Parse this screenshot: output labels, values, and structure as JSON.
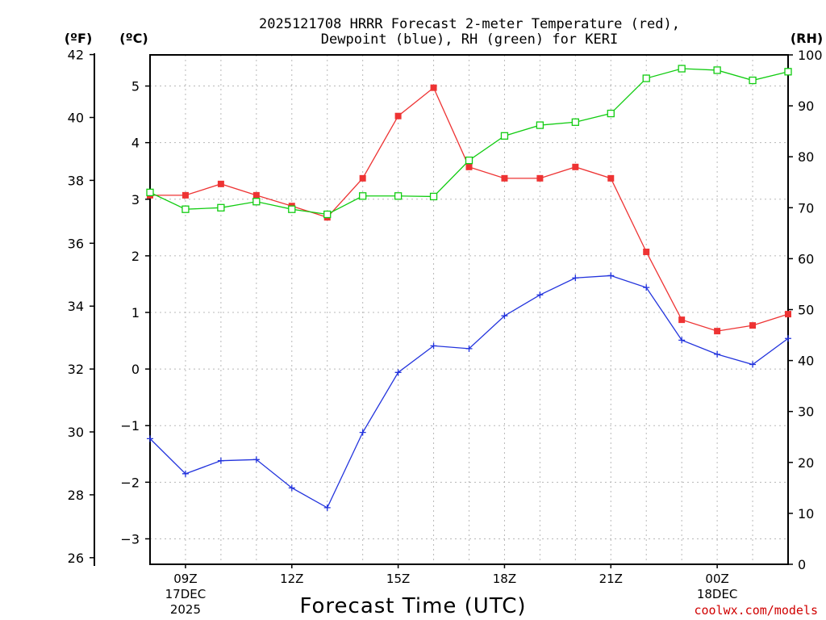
{
  "colors": {
    "temperature": "#ee3333",
    "dewpoint": "#2233dd",
    "rh": "#11cc11",
    "credit": "#d00000",
    "grid": "#b8b8b8"
  },
  "chart_data": {
    "type": "line",
    "title_line1": "2025121708 HRRR Forecast 2-meter Temperature (red),",
    "title_line2": "Dewpoint (blue), RH (green) for KERI",
    "xlabel": "Forecast Time (UTC)",
    "credit": "coolwx.com/models",
    "unit_labels": {
      "fahrenheit": "(ºF)",
      "celsius": "(ºC)",
      "rh": "(RH)"
    },
    "x": [
      "08Z",
      "09Z",
      "10Z",
      "11Z",
      "12Z",
      "13Z",
      "14Z",
      "15Z",
      "16Z",
      "17Z",
      "18Z",
      "19Z",
      "20Z",
      "21Z",
      "22Z",
      "23Z",
      "00Z",
      "01Z",
      "02Z"
    ],
    "x_tick_labels": [
      {
        "label": "09Z",
        "sub1": "17DEC",
        "sub2": "2025"
      },
      {
        "label": "12Z",
        "sub1": "",
        "sub2": ""
      },
      {
        "label": "15Z",
        "sub1": "",
        "sub2": ""
      },
      {
        "label": "18Z",
        "sub1": "",
        "sub2": ""
      },
      {
        "label": "21Z",
        "sub1": "",
        "sub2": ""
      },
      {
        "label": "00Z",
        "sub1": "18DEC",
        "sub2": ""
      }
    ],
    "y_celsius_ticks": [
      "5",
      "4",
      "3",
      "2",
      "1",
      "0",
      "−1",
      "−2",
      "−3"
    ],
    "y_fahrenheit_ticks": [
      "42",
      "40",
      "38",
      "36",
      "34",
      "32",
      "30",
      "28",
      "26"
    ],
    "y_rh_ticks": [
      "100",
      "90",
      "80",
      "70",
      "60",
      "50",
      "40",
      "30",
      "20",
      "10",
      "0"
    ],
    "ylim_celsius": [
      -3.45,
      5.55
    ],
    "ylim_rh": [
      0,
      100
    ],
    "series": [
      {
        "name": "Temperature",
        "axis": "celsius",
        "marker": "filled-square",
        "values": [
          3.07,
          3.07,
          3.27,
          3.07,
          2.88,
          2.68,
          3.37,
          4.47,
          4.97,
          3.57,
          3.37,
          3.37,
          3.57,
          3.37,
          2.07,
          0.87,
          0.67,
          0.77,
          0.97
        ]
      },
      {
        "name": "Dewpoint",
        "axis": "celsius",
        "marker": "plus",
        "values": [
          -1.23,
          -1.85,
          -1.62,
          -1.6,
          -2.1,
          -2.45,
          -1.12,
          -0.06,
          0.41,
          0.36,
          0.94,
          1.31,
          1.61,
          1.65,
          1.44,
          0.51,
          0.26,
          0.08,
          0.54
        ]
      },
      {
        "name": "RH",
        "axis": "rh",
        "marker": "open-square",
        "values": [
          73.0,
          69.7,
          70.0,
          71.2,
          69.7,
          68.7,
          72.3,
          72.3,
          72.2,
          79.3,
          84.1,
          86.2,
          86.8,
          88.5,
          95.4,
          97.3,
          97.0,
          95.0,
          96.7
        ]
      }
    ]
  }
}
